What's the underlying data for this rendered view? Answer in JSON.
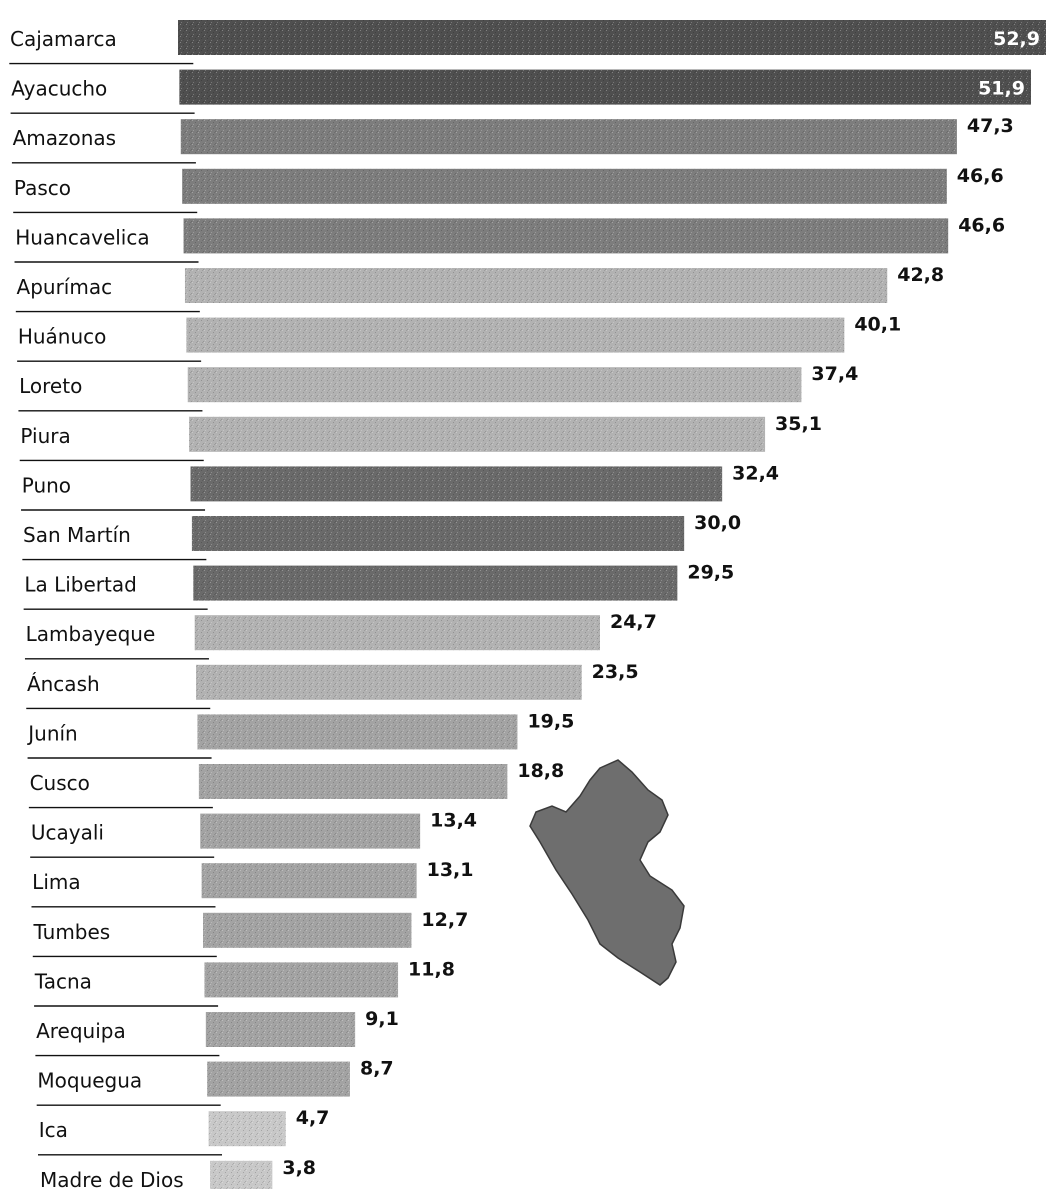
{
  "chart_data": {
    "type": "bar",
    "orientation": "horizontal",
    "categories": [
      "Cajamarca",
      "Ayacucho",
      "Amazonas",
      "Pasco",
      "Huancavelica",
      "Apurímac",
      "Huánuco",
      "Loreto",
      "Piura",
      "Puno",
      "San Martín",
      "La Libertad",
      "Lambayeque",
      "Áncash",
      "Junín",
      "Cusco",
      "Ucayali",
      "Lima",
      "Tumbes",
      "Tacna",
      "Arequipa",
      "Moquegua",
      "Ica",
      "Madre de Dios"
    ],
    "values": [
      52.9,
      51.9,
      47.3,
      46.6,
      46.6,
      42.8,
      40.1,
      37.4,
      35.1,
      32.4,
      30.0,
      29.5,
      24.7,
      23.5,
      19.5,
      18.8,
      13.4,
      13.1,
      12.7,
      11.8,
      9.1,
      8.7,
      4.7,
      3.8
    ],
    "value_labels": [
      "52,9",
      "51,9",
      "47,3",
      "46,6",
      "46,6",
      "42,8",
      "40,1",
      "37,4",
      "35,1",
      "32,4",
      "30,0",
      "29,5",
      "24,7",
      "23,5",
      "19,5",
      "18,8",
      "13,4",
      "13,1",
      "12,7",
      "11,8",
      "9,1",
      "8,7",
      "4,7",
      "3,8"
    ],
    "bar_colors": [
      "#4f4f4f",
      "#4f4f4f",
      "#7d7d7d",
      "#7d7d7d",
      "#7d7d7d",
      "#b2b2b2",
      "#b2b2b2",
      "#b2b2b2",
      "#b2b2b2",
      "#6a6a6a",
      "#6a6a6a",
      "#6a6a6a",
      "#b2b2b2",
      "#b2b2b2",
      "#a3a3a3",
      "#a3a3a3",
      "#a3a3a3",
      "#a3a3a3",
      "#a3a3a3",
      "#a3a3a3",
      "#a3a3a3",
      "#a3a3a3",
      "#c8c8c8",
      "#c8c8c8"
    ],
    "xlim": [
      0,
      52.9
    ],
    "grid": false,
    "legend": "none"
  },
  "map": {
    "icon": "peru-map-icon",
    "color": "#6e6e6e"
  }
}
